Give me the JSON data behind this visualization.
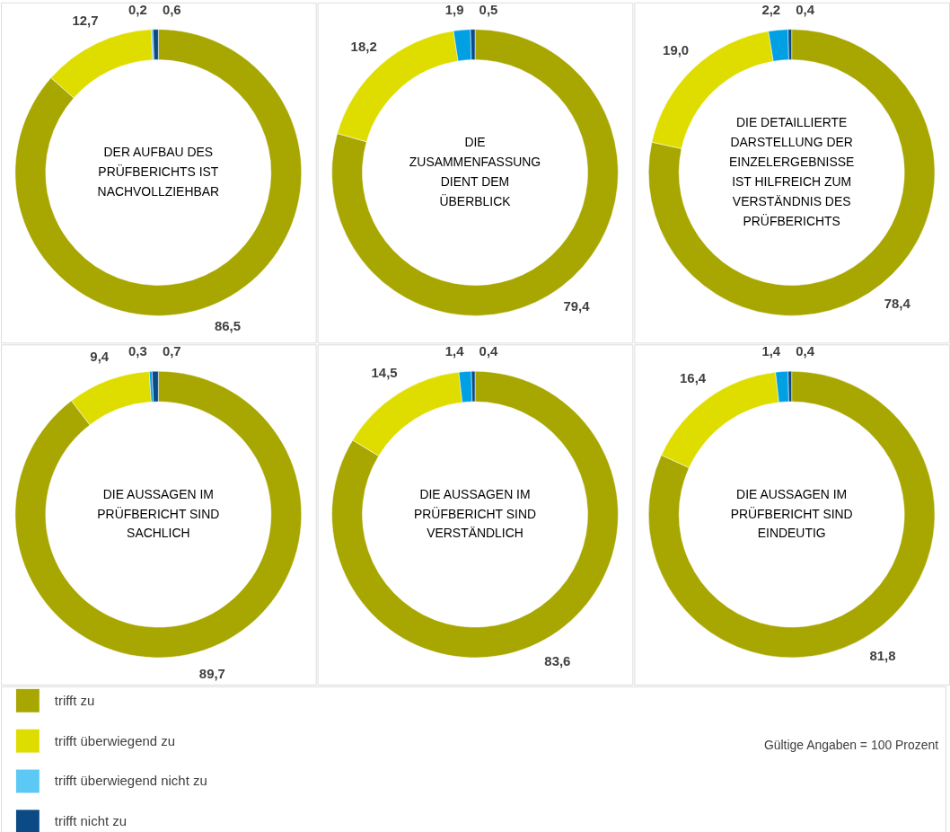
{
  "chart_data": [
    {
      "type": "donut",
      "title": "DER AUFBAU DES PRÜFBERICHTS IST NACHVOLLZIEHBAR",
      "categories": [
        "trifft zu",
        "trifft überwiegend zu",
        "trifft überwiegend nicht zu",
        "trifft nicht zu"
      ],
      "values": [
        86.5,
        12.7,
        0.2,
        0.6
      ],
      "value_labels": [
        "86,5",
        "12,7",
        "0,2",
        "0,6"
      ],
      "colors": [
        "#a8a600",
        "#dfdd00",
        "#5bc8f5",
        "#0b4a85"
      ],
      "legend": "bottom left"
    },
    {
      "type": "donut",
      "title": "DIE ZUSAMMENFASSUNG DIENT DEM ÜBERBLICK",
      "categories": [
        null,
        null,
        null,
        null
      ],
      "values": [
        79.4,
        18.2,
        1.9,
        0.5
      ],
      "value_labels": [
        "79,4",
        "18,2",
        "1,9",
        "0,5"
      ],
      "colors": [
        "#a8a600",
        "#dfdd00",
        "#00a0e3",
        "#0b4a85"
      ]
    },
    {
      "type": "donut",
      "title": "DIE DETAILLIERTE DARSTELLUNG DER EINZELERGEBNISSE IST HILFREICH ZUM VERSTÄNDNIS DES PRÜFBERICHTS",
      "categories": [
        null,
        null,
        null,
        null
      ],
      "values": [
        78.4,
        19.0,
        2.2,
        0.4
      ],
      "value_labels": [
        "78,4",
        "19,0",
        "2,2",
        "0,4"
      ],
      "colors": [
        "#a8a600",
        "#dfdd00",
        "#00a0e3",
        "#0b4a85"
      ]
    },
    {
      "type": "donut",
      "title": "DIE AUSSAGEN IM PRÜFBERICHT SIND SACHLICH",
      "categories": [
        null,
        null,
        null,
        null
      ],
      "values": [
        89.7,
        9.4,
        0.3,
        0.7
      ],
      "value_labels": [
        "89,7",
        "9,4",
        "0,3",
        "0,7"
      ],
      "colors": [
        "#a8a600",
        "#dfdd00",
        "#00a0e3",
        "#0b4a85"
      ]
    },
    {
      "type": "donut",
      "title": "DIE AUSSAGEN IM PRÜFBERICHT SIND VERSTÄNDLICH",
      "categories": [
        null,
        null,
        null,
        null
      ],
      "values": [
        83.6,
        14.5,
        1.4,
        0.4
      ],
      "value_labels": [
        "83,6",
        "14,5",
        "1,4",
        "0,4"
      ],
      "colors": [
        "#a8a600",
        "#dfdd00",
        "#00a0e3",
        "#0b4a85"
      ]
    },
    {
      "type": "donut",
      "title": "DIE AUSSAGEN IM PRÜFBERICHT SIND EINDEUTIG",
      "categories": [
        null,
        null,
        null,
        null
      ],
      "values": [
        81.8,
        16.4,
        1.4,
        0.4
      ],
      "value_labels": [
        "81,8",
        "16,4",
        "1,4",
        "0,4"
      ],
      "colors": [
        "#a8a600",
        "#dfdd00",
        "#00a0e3",
        "#0b4a85"
      ],
      "annotations": [
        "Gültige Angaben = 100 Prozent"
      ]
    }
  ]
}
